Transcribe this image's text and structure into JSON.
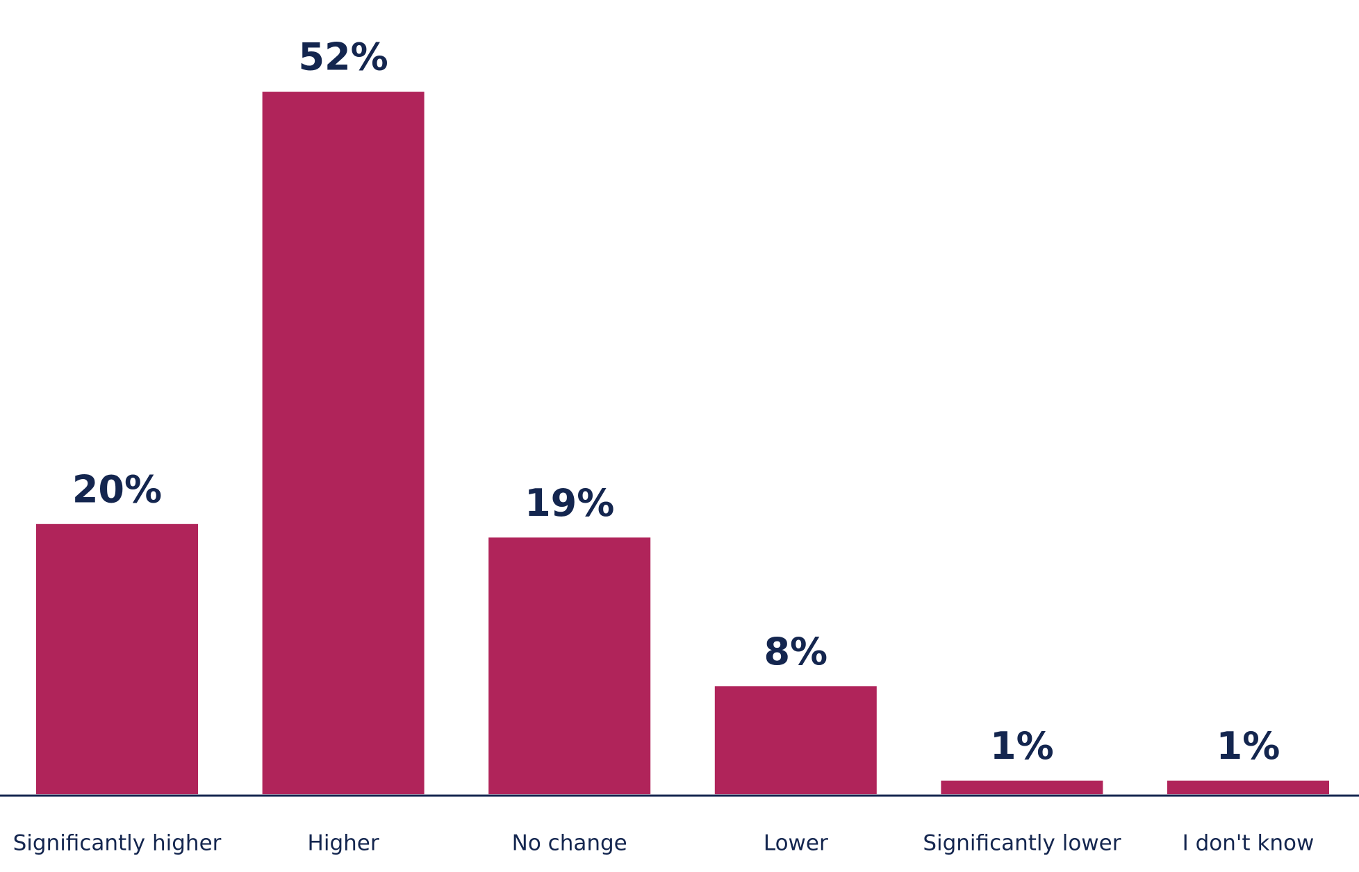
{
  "chart_data": {
    "type": "bar",
    "categories": [
      "Significantly higher",
      "Higher",
      "No change",
      "Lower",
      "Significantly lower",
      "I don't know"
    ],
    "values": [
      20,
      52,
      19,
      8,
      1,
      1
    ],
    "value_labels": [
      "20%",
      "52%",
      "19%",
      "8%",
      "1%",
      "1%"
    ],
    "color": "#b0245a"
  }
}
